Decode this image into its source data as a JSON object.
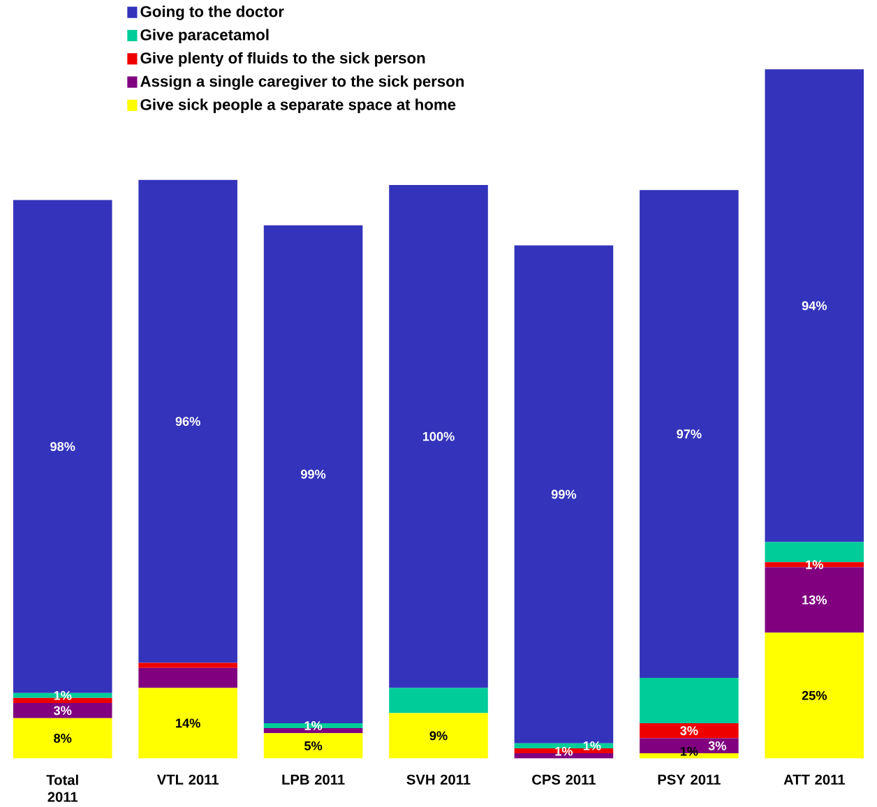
{
  "chart_data": {
    "type": "bar",
    "stacked": true,
    "legend": "top",
    "categories": [
      "Total 2011",
      "VTL 2011",
      "LPB 2011",
      "SVH 2011",
      "CPS 2011",
      "PSY 2011",
      "ATT 2011"
    ],
    "series": [
      {
        "name": "Give sick people a separate space at home",
        "color": "#ffff00",
        "values": [
          8,
          14,
          5,
          9,
          0,
          1,
          25
        ],
        "value_labels": [
          "8%",
          "14%",
          "5%",
          "9%",
          null,
          "1%",
          "25%"
        ]
      },
      {
        "name": "Assign a single caregiver to the sick person",
        "color": "#800080",
        "values": [
          3,
          4,
          1,
          0,
          1,
          3,
          13
        ],
        "value_labels": [
          "3%",
          null,
          null,
          null,
          "1%",
          "3%",
          "13%"
        ]
      },
      {
        "name": "Give plenty of fluids to the sick person",
        "color": "#ee0000",
        "values": [
          1,
          1,
          0,
          0,
          1,
          3,
          1
        ],
        "value_labels": [
          null,
          null,
          null,
          null,
          null,
          "3%",
          "1%"
        ]
      },
      {
        "name": "Give paracetamol",
        "color": "#00cc99",
        "values": [
          1,
          0,
          1,
          5,
          1,
          9,
          4
        ],
        "value_labels": [
          "1%",
          null,
          "1%",
          null,
          "1%",
          null,
          null
        ]
      },
      {
        "name": "Going to the doctor",
        "color": "#3333bb",
        "values": [
          98,
          96,
          99,
          100,
          99,
          97,
          94
        ],
        "value_labels": [
          "98%",
          "96%",
          "99%",
          "100%",
          "99%",
          "97%",
          "94%"
        ]
      }
    ]
  }
}
